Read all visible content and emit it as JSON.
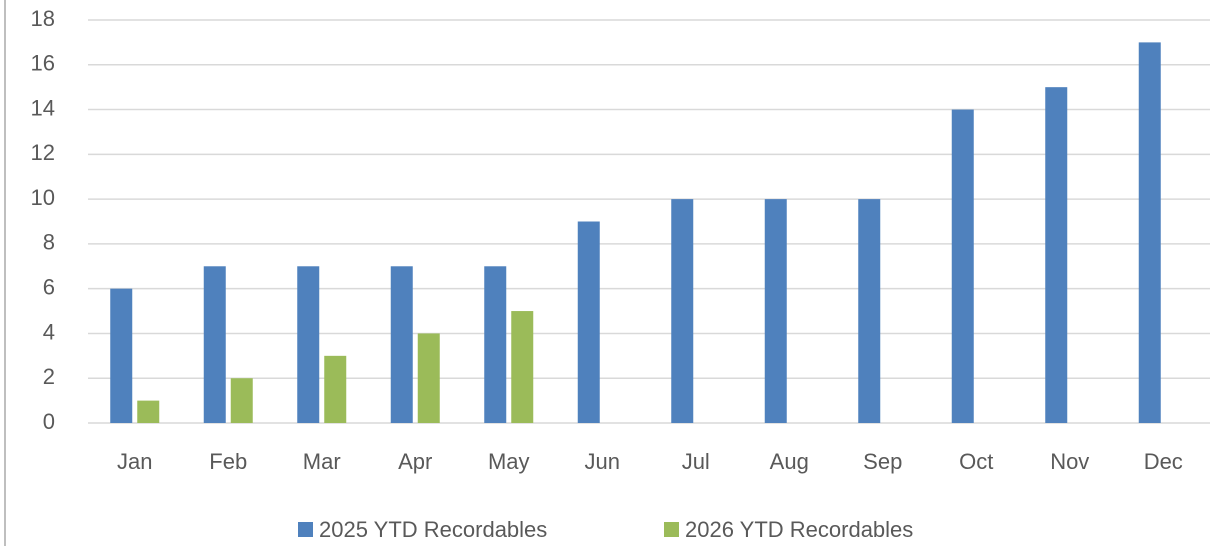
{
  "chart_data": {
    "type": "bar",
    "categories": [
      "Jan",
      "Feb",
      "Mar",
      "Apr",
      "May",
      "Jun",
      "Jul",
      "Aug",
      "Sep",
      "Oct",
      "Nov",
      "Dec"
    ],
    "series": [
      {
        "name": "2025 YTD Recordables",
        "color": "#4f81bd",
        "values": [
          6,
          7,
          7,
          7,
          7,
          9,
          10,
          10,
          10,
          14,
          15,
          17
        ]
      },
      {
        "name": "2026 YTD Recordables",
        "color": "#9bbb59",
        "values": [
          1,
          2,
          3,
          4,
          5,
          null,
          null,
          null,
          null,
          null,
          null,
          null
        ]
      }
    ],
    "ylim": [
      0,
      18
    ],
    "yticks": [
      0,
      2,
      4,
      6,
      8,
      10,
      12,
      14,
      16,
      18
    ],
    "grid": true,
    "legend": "bottom"
  }
}
